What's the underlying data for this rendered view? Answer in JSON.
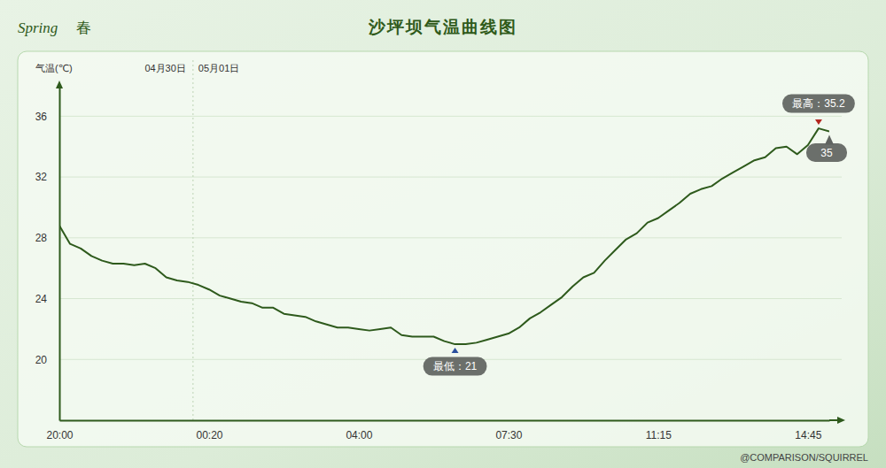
{
  "chart_data": {
    "type": "line",
    "title": "沙坪坝气温曲线图",
    "badge": [
      "Spring",
      "春"
    ],
    "y_label": "气温(℃)",
    "dates": [
      "04月30日",
      "05月01日"
    ],
    "midnight_index": 12.5,
    "categories": [
      "20:00",
      null,
      null,
      null,
      null,
      null,
      null,
      null,
      null,
      null,
      null,
      null,
      null,
      null,
      "00:20",
      null,
      null,
      null,
      null,
      null,
      null,
      null,
      null,
      null,
      null,
      null,
      null,
      null,
      "04:00",
      null,
      null,
      null,
      null,
      null,
      null,
      null,
      null,
      null,
      null,
      null,
      null,
      null,
      "07:30",
      null,
      null,
      null,
      null,
      null,
      null,
      null,
      null,
      null,
      null,
      null,
      null,
      null,
      "11:15",
      null,
      null,
      null,
      null,
      null,
      null,
      null,
      null,
      null,
      null,
      null,
      null,
      null,
      "14:45",
      null,
      null
    ],
    "values": [
      28.8,
      27.6,
      27.3,
      26.8,
      26.5,
      26.3,
      26.3,
      26.2,
      26.3,
      26.0,
      25.4,
      25.2,
      25.1,
      24.9,
      24.6,
      24.2,
      24.0,
      23.8,
      23.7,
      23.4,
      23.4,
      23.0,
      22.9,
      22.8,
      22.5,
      22.3,
      22.1,
      22.1,
      22.0,
      21.9,
      22.0,
      22.1,
      21.6,
      21.5,
      21.5,
      21.5,
      21.2,
      21.0,
      21.0,
      21.1,
      21.3,
      21.5,
      21.7,
      22.1,
      22.7,
      23.1,
      23.6,
      24.1,
      24.8,
      25.4,
      25.7,
      26.5,
      27.2,
      27.9,
      28.3,
      29.0,
      29.3,
      29.8,
      30.3,
      30.9,
      31.2,
      31.4,
      31.9,
      32.3,
      32.7,
      33.1,
      33.3,
      33.9,
      34.0,
      33.5,
      34.1,
      35.2,
      35.0
    ],
    "color": "#2e5a1c",
    "ylim": [
      16,
      38
    ],
    "yticks": [
      20,
      24,
      28,
      32,
      36
    ],
    "grid": true,
    "annotations": [
      {
        "label": "最低：21",
        "index": 37,
        "value": 21
      },
      {
        "label": "最高：35.2",
        "index": 71,
        "value": 35.2
      },
      {
        "label": "35",
        "index": 72,
        "value": 35
      }
    ],
    "source": "@COMPARISON/SQUIRREL"
  }
}
